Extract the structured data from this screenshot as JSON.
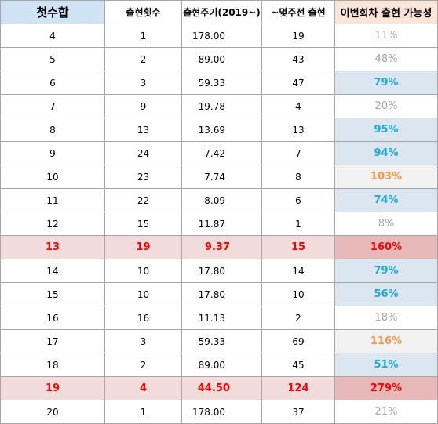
{
  "headers": [
    "첫수합",
    "출현횟수",
    "출현주기(2019~)",
    "~몇주전 출현",
    "이번회차 출현 가능성"
  ],
  "rows": [
    {
      "sum": "4",
      "count": "1",
      "cycle": "178.00",
      "ago": "19",
      "prob": "11%",
      "style": "gray",
      "hot": false
    },
    {
      "sum": "5",
      "count": "2",
      "cycle": "89.00",
      "ago": "43",
      "prob": "48%",
      "style": "gray",
      "hot": false
    },
    {
      "sum": "6",
      "count": "3",
      "cycle": "59.33",
      "ago": "47",
      "prob": "79%",
      "style": "blue",
      "hot": false
    },
    {
      "sum": "7",
      "count": "9",
      "cycle": "19.78",
      "ago": "4",
      "prob": "20%",
      "style": "gray",
      "hot": false
    },
    {
      "sum": "8",
      "count": "13",
      "cycle": "13.69",
      "ago": "13",
      "prob": "95%",
      "style": "blue",
      "hot": false
    },
    {
      "sum": "9",
      "count": "24",
      "cycle": "7.42",
      "ago": "7",
      "prob": "94%",
      "style": "blue",
      "hot": false
    },
    {
      "sum": "10",
      "count": "23",
      "cycle": "7.74",
      "ago": "8",
      "prob": "103%",
      "style": "orange",
      "hot": false
    },
    {
      "sum": "11",
      "count": "22",
      "cycle": "8.09",
      "ago": "6",
      "prob": "74%",
      "style": "blue",
      "hot": false
    },
    {
      "sum": "12",
      "count": "15",
      "cycle": "11.87",
      "ago": "1",
      "prob": "8%",
      "style": "gray",
      "hot": false
    },
    {
      "sum": "13",
      "count": "19",
      "cycle": "9.37",
      "ago": "15",
      "prob": "160%",
      "style": "red",
      "hot": true
    },
    {
      "sum": "14",
      "count": "10",
      "cycle": "17.80",
      "ago": "14",
      "prob": "79%",
      "style": "blue",
      "hot": false
    },
    {
      "sum": "15",
      "count": "10",
      "cycle": "17.80",
      "ago": "10",
      "prob": "56%",
      "style": "blue",
      "hot": false
    },
    {
      "sum": "16",
      "count": "16",
      "cycle": "11.13",
      "ago": "2",
      "prob": "18%",
      "style": "gray",
      "hot": false
    },
    {
      "sum": "17",
      "count": "3",
      "cycle": "59.33",
      "ago": "69",
      "prob": "116%",
      "style": "orange",
      "hot": false
    },
    {
      "sum": "18",
      "count": "2",
      "cycle": "89.00",
      "ago": "45",
      "prob": "51%",
      "style": "blue",
      "hot": false
    },
    {
      "sum": "19",
      "count": "4",
      "cycle": "44.50",
      "ago": "124",
      "prob": "279%",
      "style": "red",
      "hot": true
    },
    {
      "sum": "20",
      "count": "1",
      "cycle": "178.00",
      "ago": "37",
      "prob": "21%",
      "style": "gray",
      "hot": false
    }
  ]
}
